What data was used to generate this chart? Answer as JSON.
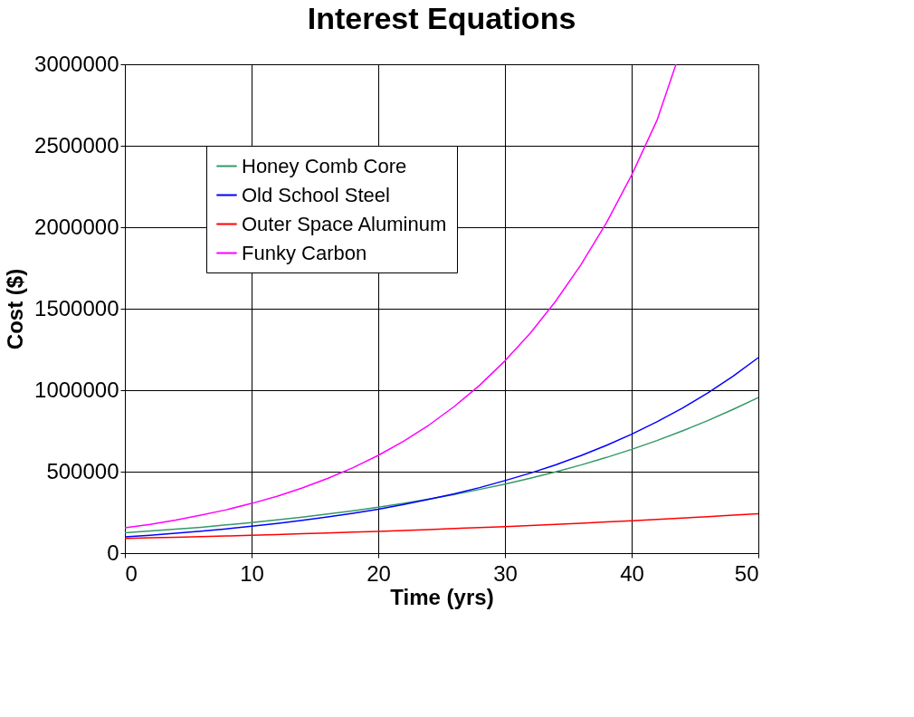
{
  "chart_data": {
    "type": "line",
    "title": "Interest Equations",
    "xlabel": "Time (yrs)",
    "ylabel": "Cost ($)",
    "x": [
      0,
      2,
      4,
      6,
      8,
      10,
      12,
      14,
      16,
      18,
      20,
      22,
      24,
      26,
      28,
      30,
      32,
      34,
      36,
      38,
      40,
      42,
      44,
      46,
      48,
      50
    ],
    "series": [
      {
        "name": "Honey Comb Core",
        "color": "#339966",
        "values": [
          125000,
          136000,
          147000,
          159000,
          173000,
          188000,
          204000,
          221000,
          240000,
          260000,
          282000,
          306000,
          332000,
          360000,
          391000,
          424000,
          460000,
          499000,
          541000,
          587000,
          637000,
          691000,
          750000,
          813000,
          882000,
          955000
        ]
      },
      {
        "name": "Old School Steel",
        "color": "#0000ff",
        "values": [
          100000,
          110000,
          122000,
          135000,
          149000,
          165000,
          182000,
          201000,
          222000,
          245000,
          270000,
          299000,
          330000,
          364000,
          402000,
          445000,
          491000,
          542000,
          599000,
          661000,
          730000,
          806000,
          890000,
          983000,
          1085000,
          1200000
        ]
      },
      {
        "name": "Outer Space Aluminum",
        "color": "#ff0000",
        "values": [
          90000,
          94000,
          97000,
          101000,
          105000,
          110000,
          114000,
          119000,
          124000,
          129000,
          134000,
          139000,
          145000,
          151000,
          157000,
          163000,
          170000,
          177000,
          184000,
          191000,
          199000,
          207000,
          215000,
          224000,
          233000,
          242000
        ]
      },
      {
        "name": "Funky Carbon",
        "color": "#ff00ff",
        "x": [
          0,
          2,
          4,
          6,
          8,
          10,
          12,
          14,
          16,
          18,
          20,
          22,
          24,
          26,
          28,
          30,
          32,
          34,
          36,
          38,
          40,
          42,
          43.5
        ],
        "values": [
          155000,
          177000,
          203000,
          233000,
          266000,
          305000,
          349000,
          400000,
          458000,
          524000,
          600000,
          687000,
          786000,
          900000,
          1030000,
          1180000,
          1350000,
          1546000,
          1770000,
          2026000,
          2320000,
          2656000,
          3000000
        ]
      }
    ],
    "xlim": [
      0,
      50
    ],
    "xticks": [
      0,
      10,
      20,
      30,
      40,
      50
    ],
    "ylim": [
      0,
      3000000
    ],
    "yticks": [
      0,
      500000,
      1000000,
      1500000,
      2000000,
      2500000,
      3000000
    ],
    "grid": true,
    "legend": "top left",
    "marker": "none",
    "line_style": "solid"
  }
}
